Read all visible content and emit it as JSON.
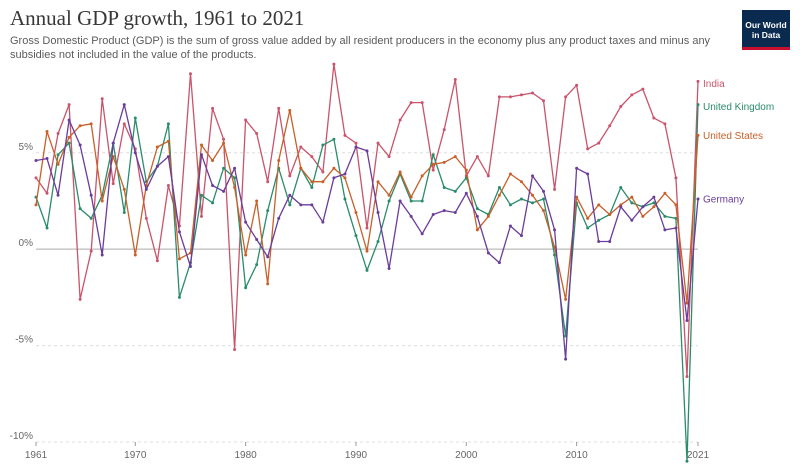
{
  "header": {
    "title": "Annual GDP growth, 1961 to 2021",
    "subtitle": "Gross Domestic Product (GDP) is the sum of gross value added by all resident producers in the economy plus any product taxes and minus any subsidies not included in the value of the products.",
    "logo_line1": "Our World",
    "logo_line2": "in Data"
  },
  "colors": {
    "India": "#c9546b",
    "United Kingdom": "#2a8c6a",
    "United States": "#c8602a",
    "Germany": "#6a3d9a",
    "grid": "#dddddd",
    "zero_line": "#aaaaaa"
  },
  "chart_data": {
    "type": "line",
    "title": "Annual GDP growth, 1961 to 2021",
    "xlim": [
      1961,
      2021
    ],
    "ylim": [
      -10,
      9.5
    ],
    "x_ticks": [
      1961,
      1970,
      1980,
      1990,
      2000,
      2010,
      2021
    ],
    "y_ticks": [
      {
        "value": 5,
        "label": "5%"
      },
      {
        "value": 0,
        "label": "0%"
      },
      {
        "value": -5,
        "label": "-5%"
      },
      {
        "value": -10,
        "label": "-10%"
      }
    ],
    "grid": true,
    "legend": "right-end-labels",
    "x": [
      1961,
      1962,
      1963,
      1964,
      1965,
      1966,
      1967,
      1968,
      1969,
      1970,
      1971,
      1972,
      1973,
      1974,
      1975,
      1976,
      1977,
      1978,
      1979,
      1980,
      1981,
      1982,
      1983,
      1984,
      1985,
      1986,
      1987,
      1988,
      1989,
      1990,
      1991,
      1992,
      1993,
      1994,
      1995,
      1996,
      1997,
      1998,
      1999,
      2000,
      2001,
      2002,
      2003,
      2004,
      2005,
      2006,
      2007,
      2008,
      2009,
      2010,
      2011,
      2012,
      2013,
      2014,
      2015,
      2016,
      2017,
      2018,
      2019,
      2020,
      2021
    ],
    "series": [
      {
        "name": "India",
        "values": [
          3.7,
          2.9,
          6.0,
          7.5,
          -2.6,
          -0.1,
          7.8,
          3.4,
          6.5,
          5.2,
          1.6,
          -0.6,
          3.3,
          1.2,
          9.1,
          1.7,
          7.3,
          5.7,
          -5.2,
          6.7,
          6.0,
          3.5,
          7.3,
          3.8,
          5.3,
          4.8,
          4.0,
          9.6,
          5.9,
          5.5,
          1.1,
          5.5,
          4.8,
          6.7,
          7.6,
          7.6,
          4.1,
          6.2,
          8.8,
          3.8,
          4.8,
          3.8,
          7.9,
          7.9,
          8.0,
          8.1,
          7.7,
          3.1,
          7.9,
          8.5,
          5.2,
          5.5,
          6.4,
          7.4,
          8.0,
          8.3,
          6.8,
          6.5,
          3.7,
          -6.6,
          8.7
        ]
      },
      {
        "name": "United Kingdom",
        "values": [
          2.7,
          1.1,
          4.9,
          5.5,
          2.1,
          1.6,
          2.8,
          5.5,
          1.9,
          6.8,
          3.5,
          4.3,
          6.5,
          -2.5,
          -0.7,
          2.8,
          2.4,
          4.2,
          3.7,
          -2.0,
          -0.8,
          2.0,
          4.2,
          2.3,
          4.2,
          3.2,
          5.4,
          5.7,
          2.6,
          0.7,
          -1.1,
          0.4,
          2.5,
          3.9,
          2.5,
          2.5,
          4.9,
          3.2,
          3.0,
          3.7,
          2.1,
          1.8,
          3.2,
          2.3,
          2.6,
          2.4,
          2.6,
          -0.3,
          -4.5,
          2.4,
          1.1,
          1.5,
          1.8,
          3.2,
          2.4,
          2.2,
          2.4,
          1.7,
          1.6,
          -11.0,
          7.5
        ]
      },
      {
        "name": "United States",
        "values": [
          2.3,
          6.1,
          4.4,
          5.8,
          6.4,
          6.5,
          2.5,
          4.8,
          3.1,
          -0.3,
          3.3,
          5.3,
          5.6,
          -0.5,
          -0.2,
          5.4,
          4.6,
          5.5,
          3.2,
          -0.3,
          2.5,
          -1.8,
          4.6,
          7.2,
          4.2,
          3.5,
          3.5,
          4.2,
          3.7,
          1.9,
          -0.1,
          3.5,
          2.8,
          4.0,
          2.7,
          3.8,
          4.4,
          4.5,
          4.8,
          4.1,
          1.0,
          1.7,
          2.8,
          3.9,
          3.5,
          2.8,
          2.0,
          0.1,
          -2.6,
          2.7,
          1.6,
          2.3,
          1.8,
          2.3,
          2.7,
          1.7,
          2.2,
          2.9,
          2.3,
          -2.8,
          5.9
        ]
      },
      {
        "name": "Germany",
        "values": [
          4.6,
          4.7,
          2.8,
          6.7,
          5.4,
          2.8,
          -0.3,
          5.5,
          7.5,
          5.0,
          3.1,
          4.3,
          4.8,
          0.9,
          -0.9,
          4.9,
          3.3,
          3.0,
          4.2,
          1.4,
          0.5,
          -0.4,
          1.6,
          2.8,
          2.3,
          2.3,
          1.4,
          3.7,
          3.9,
          5.3,
          5.1,
          1.9,
          -1.0,
          2.5,
          1.7,
          0.8,
          1.8,
          2.0,
          1.9,
          2.9,
          1.7,
          -0.2,
          -0.7,
          1.2,
          0.7,
          3.8,
          3.0,
          1.0,
          -5.7,
          4.2,
          3.9,
          0.4,
          0.4,
          2.2,
          1.5,
          2.2,
          2.7,
          1.0,
          1.1,
          -3.7,
          2.6
        ]
      }
    ]
  }
}
